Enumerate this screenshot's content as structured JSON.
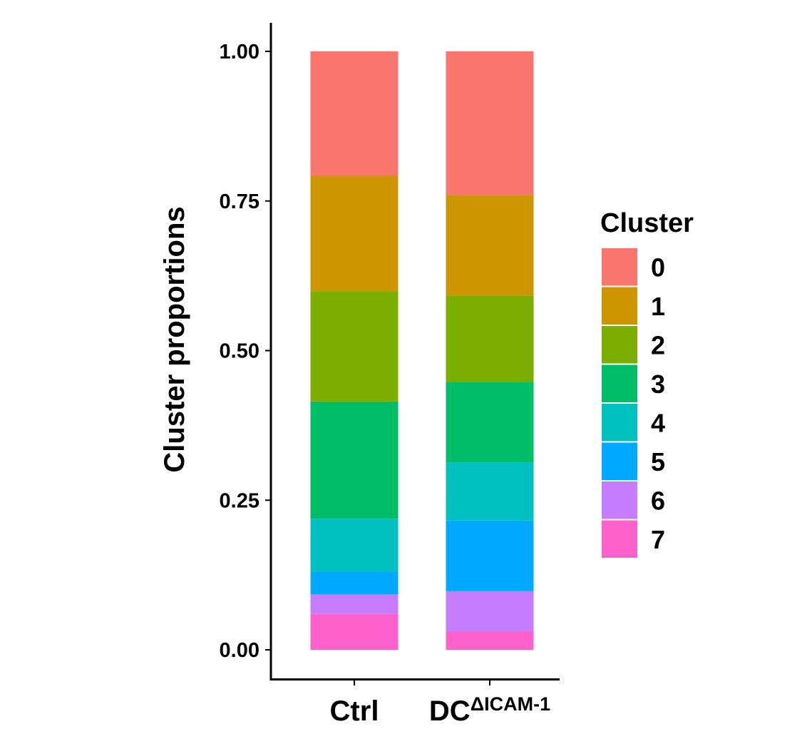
{
  "chart_data": {
    "type": "bar",
    "stacked": true,
    "title": "",
    "xlabel": "",
    "ylabel": "Cluster proportions",
    "ylim": [
      0,
      1
    ],
    "yticks": [
      "0.00",
      "0.25",
      "0.50",
      "0.75",
      "1.00"
    ],
    "ytick_values": [
      0,
      0.25,
      0.5,
      0.75,
      1.0
    ],
    "categories": [
      {
        "label": "Ctrl",
        "sup": ""
      },
      {
        "label": "DC",
        "sup": "ΔICAM-1"
      }
    ],
    "legend": {
      "title": "Cluster",
      "position": "right"
    },
    "series": [
      {
        "name": "0",
        "color": "#F8766D",
        "values": [
          0.208,
          0.24
        ]
      },
      {
        "name": "1",
        "color": "#CD9600",
        "values": [
          0.193,
          0.168
        ]
      },
      {
        "name": "2",
        "color": "#7CAE00",
        "values": [
          0.184,
          0.145
        ]
      },
      {
        "name": "3",
        "color": "#00BE67",
        "values": [
          0.196,
          0.134
        ]
      },
      {
        "name": "4",
        "color": "#00C0C0",
        "values": [
          0.088,
          0.097
        ]
      },
      {
        "name": "5",
        "color": "#00A9FF",
        "values": [
          0.038,
          0.118
        ]
      },
      {
        "name": "6",
        "color": "#C77CFF",
        "values": [
          0.033,
          0.067
        ]
      },
      {
        "name": "7",
        "color": "#FF61CC",
        "values": [
          0.06,
          0.031
        ]
      }
    ]
  }
}
